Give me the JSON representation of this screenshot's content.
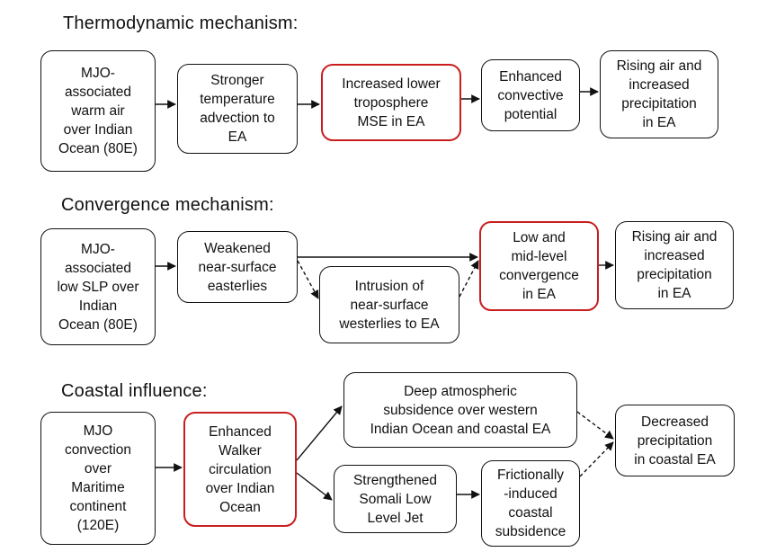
{
  "sections": {
    "thermo": {
      "title": "Thermodynamic mechanism:",
      "boxes": [
        "MJO-\nassociated\nwarm air\nover Indian\nOcean (80E)",
        "Stronger\ntemperature\nadvection to\nEA",
        "Increased lower\ntroposphere\nMSE in EA",
        "Enhanced\nconvective\npotential",
        "Rising air and\nincreased\nprecipitation\nin EA"
      ]
    },
    "convergence": {
      "title": "Convergence mechanism:",
      "boxes": [
        "MJO-\nassociated\nlow SLP over\nIndian\nOcean (80E)",
        "Weakened\nnear-surface\neasterlies",
        "Intrusion of\nnear-surface\nwesterlies to EA",
        "Low and\nmid-level\nconvergence\nin EA",
        "Rising air and\nincreased\nprecipitation\nin EA"
      ]
    },
    "coastal": {
      "title": "Coastal influence:",
      "boxes": [
        "MJO\nconvection\nover\nMaritime\ncontinent\n(120E)",
        "Enhanced\nWalker\ncirculation\nover Indian\nOcean",
        "Deep atmospheric\nsubsidence over western\nIndian Ocean and coastal EA",
        "Strengthened\nSomali Low\nLevel Jet",
        "Frictionally\n-induced\ncoastal\nsubsidence",
        "Decreased\nprecipitation\nin coastal EA"
      ]
    }
  },
  "colors": {
    "highlight_border": "#c81e1e",
    "default_border": "#111111"
  }
}
